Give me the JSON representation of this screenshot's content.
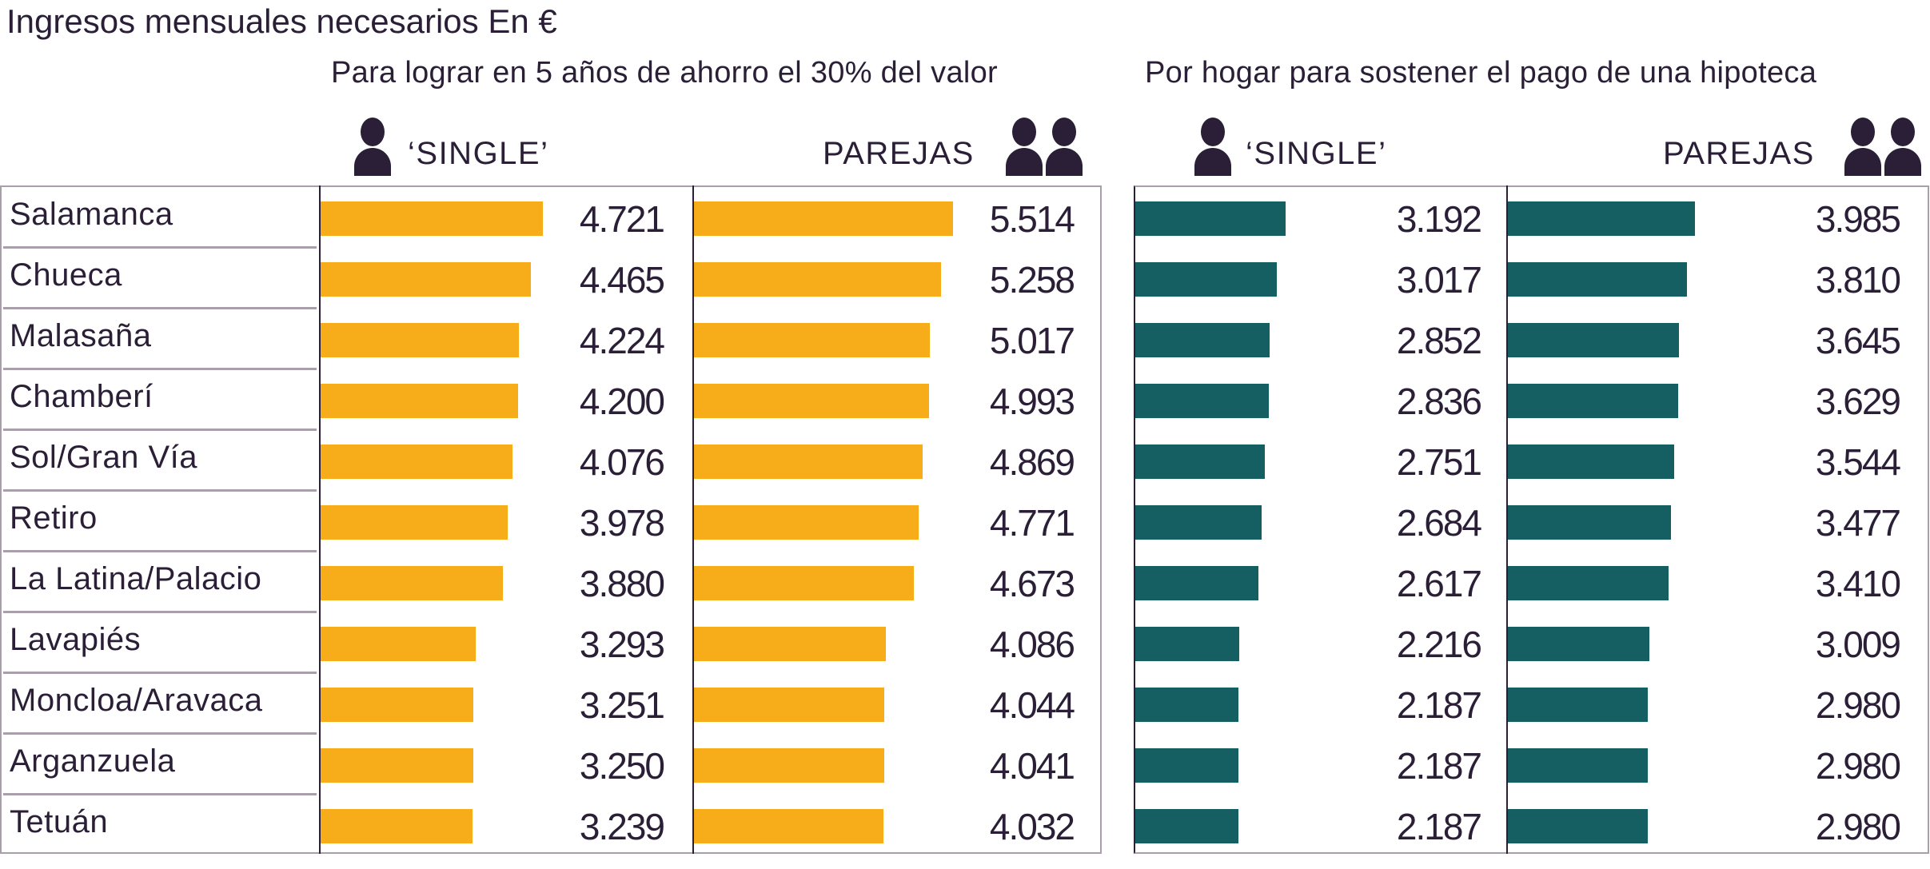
{
  "title": {
    "main": "Ingresos mensuales necesarios",
    "unit": "En €"
  },
  "sections": [
    {
      "subtitle": "Para lograr en 5 años de ahorro el 30% del valor",
      "single_label": "‘SINGLE’",
      "couples_label": "PAREJAS",
      "color": "#f7ac19"
    },
    {
      "subtitle": "Por hogar para sostener el pago de una hipoteca",
      "single_label": "‘SINGLE’",
      "couples_label": "PAREJAS",
      "color": "#155f63"
    }
  ],
  "icons": {
    "single": "person-icon",
    "couples": "two-persons-icon"
  },
  "chart_data": {
    "type": "bar",
    "orientation": "horizontal",
    "title": "Ingresos mensuales necesarios En €",
    "xlabel": "",
    "ylabel": "",
    "xlim": [
      0,
      6000
    ],
    "grid": false,
    "categories": [
      "Salamanca",
      "Chueca",
      "Malasaña",
      "Chamberí",
      "Sol/Gran Vía",
      "Retiro",
      "La Latina/Palacio",
      "Lavapiés",
      "Moncloa/Aravaca",
      "Arganzuela",
      "Tetuán"
    ],
    "series": [
      {
        "name": "Ahorro 30% en 5 años - 'SINGLE'",
        "group": "Para lograr en 5 años de ahorro el 30% del valor",
        "color": "#f7ac19",
        "values": [
          4721,
          4465,
          4224,
          4200,
          4076,
          3978,
          3880,
          3293,
          3251,
          3250,
          3239
        ],
        "labels": [
          "4.721",
          "4.465",
          "4.224",
          "4.200",
          "4.076",
          "3.978",
          "3.880",
          "3.293",
          "3.251",
          "3.250",
          "3.239"
        ]
      },
      {
        "name": "Ahorro 30% en 5 años - PAREJAS",
        "group": "Para lograr en 5 años de ahorro el 30% del valor",
        "color": "#f7ac19",
        "values": [
          5514,
          5258,
          5017,
          4993,
          4869,
          4771,
          4673,
          4086,
          4044,
          4041,
          4032
        ],
        "labels": [
          "5.514",
          "5.258",
          "5.017",
          "4.993",
          "4.869",
          "4.771",
          "4.673",
          "4.086",
          "4.044",
          "4.041",
          "4.032"
        ]
      },
      {
        "name": "Pago hipoteca - 'SINGLE'",
        "group": "Por hogar para sostener el pago de una hipoteca",
        "color": "#155f63",
        "values": [
          3192,
          3017,
          2852,
          2836,
          2751,
          2684,
          2617,
          2216,
          2187,
          2187,
          2187
        ],
        "labels": [
          "3.192",
          "3.017",
          "2.852",
          "2.836",
          "2.751",
          "2.684",
          "2.617",
          "2.216",
          "2.187",
          "2.187",
          "2.187"
        ]
      },
      {
        "name": "Pago hipoteca - PAREJAS",
        "group": "Por hogar para sostener el pago de una hipoteca",
        "color": "#155f63",
        "values": [
          3985,
          3810,
          3645,
          3629,
          3544,
          3477,
          3410,
          3009,
          2980,
          2980,
          2980
        ],
        "labels": [
          "3.985",
          "3.810",
          "3.645",
          "3.629",
          "3.544",
          "3.477",
          "3.410",
          "3.009",
          "2.980",
          "2.980",
          "2.980"
        ]
      }
    ]
  }
}
